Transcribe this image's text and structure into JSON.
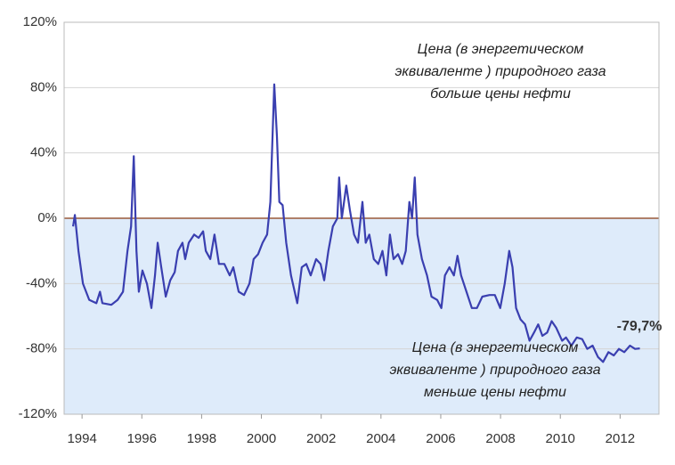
{
  "chart_data": {
    "type": "line",
    "x": [
      1993.7,
      1993.76,
      1993.88,
      1994.03,
      1994.24,
      1994.48,
      1994.6,
      1994.68,
      1994.98,
      1995.19,
      1995.37,
      1995.52,
      1995.64,
      1995.73,
      1995.82,
      1995.9,
      1996.02,
      1996.17,
      1996.32,
      1996.44,
      1996.53,
      1996.65,
      1996.8,
      1996.95,
      1997.1,
      1997.21,
      1997.36,
      1997.45,
      1997.57,
      1997.75,
      1997.9,
      1998.05,
      1998.14,
      1998.29,
      1998.43,
      1998.58,
      1998.76,
      1998.94,
      1999.06,
      1999.24,
      1999.42,
      1999.6,
      1999.74,
      1999.89,
      2000.04,
      2000.19,
      2000.3,
      2000.43,
      2000.52,
      2000.6,
      2000.71,
      2000.83,
      2000.99,
      2001.2,
      2001.35,
      2001.5,
      2001.65,
      2001.83,
      2001.98,
      2002.1,
      2002.24,
      2002.39,
      2002.54,
      2002.6,
      2002.69,
      2002.84,
      2002.96,
      2003.1,
      2003.23,
      2003.38,
      2003.49,
      2003.61,
      2003.76,
      2003.91,
      2004.05,
      2004.18,
      2004.3,
      2004.42,
      2004.57,
      2004.71,
      2004.83,
      2004.95,
      2005.04,
      2005.13,
      2005.22,
      2005.37,
      2005.54,
      2005.69,
      2005.88,
      2006.02,
      2006.14,
      2006.29,
      2006.44,
      2006.56,
      2006.68,
      2006.86,
      2007.04,
      2007.21,
      2007.39,
      2007.63,
      2007.81,
      2007.99,
      2008.14,
      2008.29,
      2008.4,
      2008.52,
      2008.67,
      2008.82,
      2008.97,
      2009.12,
      2009.26,
      2009.4,
      2009.56,
      2009.71,
      2009.86,
      2010.06,
      2010.19,
      2010.37,
      2010.55,
      2010.73,
      2010.9,
      2011.08,
      2011.26,
      2011.43,
      2011.61,
      2011.79,
      2011.96,
      2012.14,
      2012.33,
      2012.5,
      2012.66
    ],
    "series": [
      {
        "color": "#3a3fb0",
        "values": [
          -5,
          2,
          -20,
          -40,
          -50,
          -52,
          -45,
          -52,
          -53,
          -50,
          -45,
          -20,
          -5,
          38,
          -20,
          -45,
          -32,
          -40,
          -55,
          -35,
          -15,
          -30,
          -48,
          -38,
          -33,
          -20,
          -15,
          -25,
          -15,
          -10,
          -12,
          -8,
          -20,
          -25,
          -10,
          -28,
          -28,
          -35,
          -30,
          -45,
          -47,
          -40,
          -25,
          -22,
          -15,
          -10,
          10,
          82,
          50,
          10,
          8,
          -15,
          -35,
          -52,
          -30,
          -28,
          -35,
          -25,
          -28,
          -38,
          -20,
          -5,
          0,
          25,
          0,
          20,
          5,
          -10,
          -15,
          10,
          -15,
          -10,
          -25,
          -28,
          -20,
          -35,
          -10,
          -25,
          -22,
          -28,
          -20,
          10,
          0,
          25,
          -10,
          -25,
          -35,
          -48,
          -50,
          -55,
          -35,
          -30,
          -35,
          -23,
          -35,
          -45,
          -55,
          -55,
          -48,
          -47,
          -47,
          -55,
          -40,
          -20,
          -30,
          -55,
          -62,
          -65,
          -75,
          -70,
          -65,
          -72,
          -70,
          -63,
          -67,
          -75,
          -73,
          -78,
          -73,
          -74,
          -80,
          -78,
          -85,
          -88,
          -82,
          -84,
          -80,
          -82,
          -78,
          -80,
          -79.7
        ]
      }
    ],
    "xlim": [
      1993.4,
      2013.3
    ],
    "xticks": [
      1994,
      1996,
      1998,
      2000,
      2002,
      2004,
      2006,
      2008,
      2010,
      2012
    ],
    "ylim": [
      -120,
      120
    ],
    "yticks": [
      {
        "value": -120,
        "label": "-120%"
      },
      {
        "value": -80,
        "label": "-80%"
      },
      {
        "value": -40,
        "label": "-40%"
      },
      {
        "value": 0,
        "label": "0%"
      },
      {
        "value": 40,
        "label": "40%"
      },
      {
        "value": 80,
        "label": "80%"
      },
      {
        "value": 120,
        "label": "120%"
      }
    ],
    "grid": true,
    "annotations": {
      "upper": [
        "Цена (в энергетическом",
        "эквиваленте ) природного газа",
        "больше цены нефти"
      ],
      "lower": [
        "Цена (в энергетическом",
        "эквиваленте ) природного газа",
        "меньше цены нефти"
      ],
      "last": "-79,7%"
    }
  }
}
